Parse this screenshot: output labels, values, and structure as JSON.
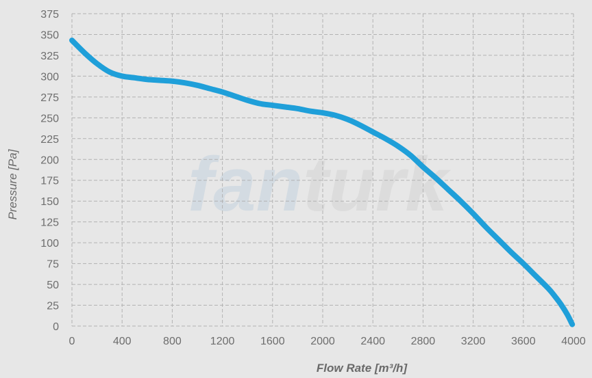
{
  "watermark": {
    "prefix": "fan",
    "suffix": "turk",
    "prefix_color": "#d3dbe2",
    "suffix_color": "#dcdcdc"
  },
  "colors": {
    "background": "#e7e7e7",
    "curve": "#1f9fd9",
    "grid": "#b2b2b2",
    "text": "#6d6d6d"
  },
  "chart_data": {
    "type": "line",
    "xlabel": "Flow Rate [m³/h]",
    "ylabel": "Pressure [Pa]",
    "xlim": [
      0,
      4000
    ],
    "ylim": [
      0,
      375
    ],
    "xticks": [
      "0",
      "400",
      "800",
      "1200",
      "1600",
      "2000",
      "2400",
      "2800",
      "3200",
      "3600",
      "4000"
    ],
    "yticks": [
      "0",
      "25",
      "50",
      "75",
      "100",
      "125",
      "150",
      "175",
      "200",
      "225",
      "250",
      "275",
      "300",
      "325",
      "350",
      "375"
    ],
    "grid": true,
    "series": [
      {
        "x": [
          0,
          100,
          200,
          300,
          400,
          500,
          600,
          700,
          800,
          900,
          1000,
          1100,
          1200,
          1300,
          1400,
          1500,
          1600,
          1700,
          1800,
          1900,
          2000,
          2100,
          2200,
          2300,
          2400,
          2500,
          2600,
          2700,
          2800,
          2900,
          3000,
          3100,
          3200,
          3300,
          3400,
          3500,
          3600,
          3700,
          3800,
          3850,
          3900,
          3950,
          3990
        ],
        "y": [
          343,
          328,
          315,
          305,
          300,
          298,
          296,
          295,
          294,
          292,
          289,
          285,
          281,
          276,
          271,
          267,
          265,
          263,
          261,
          258,
          256,
          253,
          248,
          241,
          233,
          225,
          216,
          205,
          191,
          178,
          164,
          150,
          135,
          119,
          104,
          89,
          75,
          60,
          45,
          36,
          26,
          14,
          2
        ]
      }
    ]
  }
}
